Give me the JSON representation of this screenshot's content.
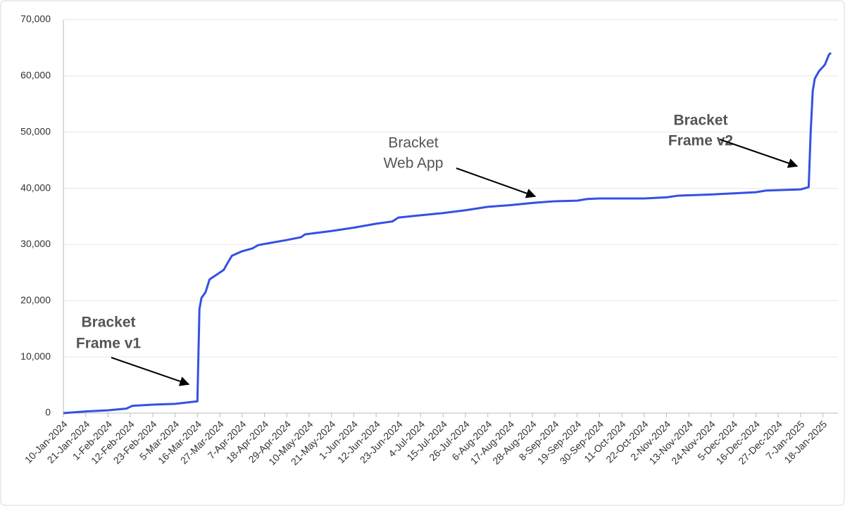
{
  "chart_data": {
    "type": "line",
    "x": [
      "10-Jan-2024",
      "21-Jan-2024",
      "1-Feb-2024",
      "10-Feb-2024",
      "13-Feb-2024",
      "23-Feb-2024",
      "5-Mar-2024",
      "16-Mar-2024",
      "17-Mar-2024",
      "18-Mar-2024",
      "20-Mar-2024",
      "22-Mar-2024",
      "27-Mar-2024",
      "29-Mar-2024",
      "31-Mar-2024",
      "2-Apr-2024",
      "7-Apr-2024",
      "12-Apr-2024",
      "15-Apr-2024",
      "29-Apr-2024",
      "6-May-2024",
      "8-May-2024",
      "21-May-2024",
      "1-Jun-2024",
      "12-Jun-2024",
      "20-Jun-2024",
      "23-Jun-2024",
      "4-Jul-2024",
      "15-Jul-2024",
      "26-Jul-2024",
      "6-Aug-2024",
      "17-Aug-2024",
      "28-Aug-2024",
      "8-Sep-2024",
      "19-Sep-2024",
      "24-Sep-2024",
      "30-Sep-2024",
      "22-Oct-2024",
      "2-Nov-2024",
      "8-Nov-2024",
      "24-Nov-2024",
      "5-Dec-2024",
      "16-Dec-2024",
      "21-Dec-2024",
      "7-Jan-2025",
      "11-Jan-2025",
      "12-Jan-2025",
      "13-Jan-2025",
      "14-Jan-2025",
      "16-Jan-2025",
      "19-Jan-2025",
      "21-Jan-2025",
      "22-Jan-2025"
    ],
    "series": [
      {
        "color": "#3550e3",
        "values": [
          0,
          300,
          500,
          800,
          1300,
          1500,
          1650,
          2100,
          18500,
          20500,
          21500,
          23800,
          25000,
          25500,
          26800,
          28000,
          28800,
          29300,
          29900,
          30800,
          31300,
          31800,
          32400,
          33000,
          33700,
          34100,
          34800,
          35200,
          35600,
          36100,
          36700,
          37000,
          37400,
          37700,
          37800,
          38100,
          38200,
          38200,
          38400,
          38700,
          38900,
          39100,
          39300,
          39600,
          39800,
          40200,
          50000,
          57300,
          59500,
          60800,
          62000,
          63800,
          64100
        ]
      }
    ],
    "xlim": [
      "10-Jan-2024",
      "23-Jan-2025"
    ],
    "xticks": [
      "10-Jan-2024",
      "21-Jan-2024",
      "1-Feb-2024",
      "12-Feb-2024",
      "23-Feb-2024",
      "5-Mar-2024",
      "16-Mar-2024",
      "27-Mar-2024",
      "7-Apr-2024",
      "18-Apr-2024",
      "29-Apr-2024",
      "10-May-2024",
      "21-May-2024",
      "1-Jun-2024",
      "12-Jun-2024",
      "23-Jun-2024",
      "4-Jul-2024",
      "15-Jul-2024",
      "26-Jul-2024",
      "6-Aug-2024",
      "17-Aug-2024",
      "28-Aug-2024",
      "8-Sep-2024",
      "19-Sep-2024",
      "30-Sep-2024",
      "11-Oct-2024",
      "22-Oct-2024",
      "2-Nov-2024",
      "13-Nov-2024",
      "24-Nov-2024",
      "5-Dec-2024",
      "16-Dec-2024",
      "27-Dec-2024",
      "7-Jan-2025",
      "18-Jan-2025"
    ],
    "ylim": [
      0,
      70000
    ],
    "yticks": [
      0,
      {
        "value": 10000,
        "label": "10,000"
      },
      {
        "value": 20000,
        "label": "20,000"
      },
      {
        "value": 30000,
        "label": "30,000"
      },
      {
        "value": 40000,
        "label": "40,000"
      },
      {
        "value": 50000,
        "label": "50,000"
      },
      {
        "value": 60000,
        "label": "60,000"
      },
      {
        "value": 70000,
        "label": "70,000"
      }
    ],
    "grid": true,
    "annotations": [
      {
        "lines": [
          "Bracket",
          "Frame v1"
        ]
      },
      {
        "lines": [
          "Bracket",
          "Web App"
        ]
      },
      {
        "lines": [
          "Bracket",
          "Frame v2"
        ]
      }
    ]
  }
}
